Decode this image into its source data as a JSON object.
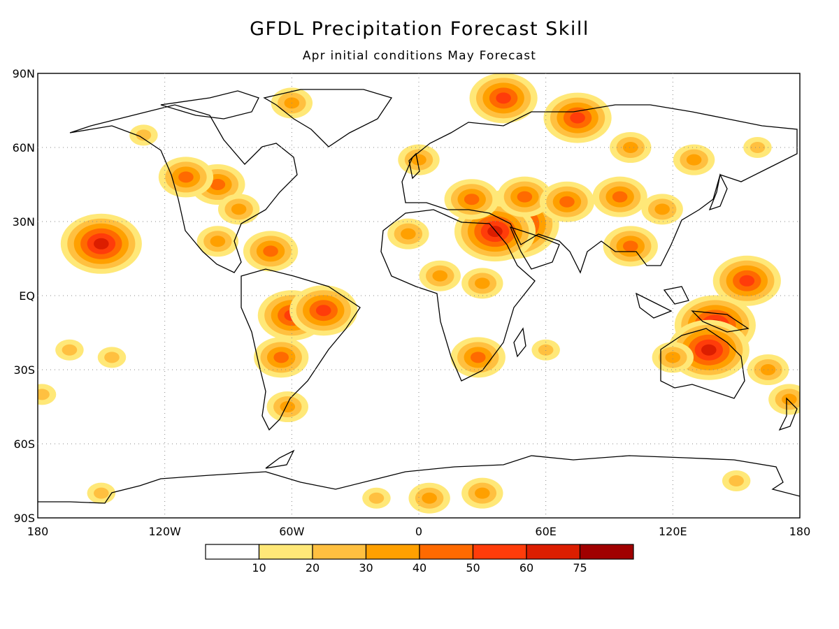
{
  "title": "GFDL Precipitation Forecast Skill",
  "subtitle": "Apr initial conditions  May Forecast",
  "axes": {
    "lat_ticks": [
      "90N",
      "60N",
      "30N",
      "EQ",
      "30S",
      "60S",
      "90S"
    ],
    "lat_values": [
      90,
      60,
      30,
      0,
      -30,
      -60,
      -90
    ],
    "lon_ticks": [
      "180",
      "120W",
      "60W",
      "0",
      "60E",
      "120E",
      "180"
    ],
    "lon_values": [
      -180,
      -120,
      -60,
      0,
      60,
      120,
      180
    ]
  },
  "colorbar": {
    "levels": [
      "10",
      "20",
      "30",
      "40",
      "50",
      "60",
      "75"
    ],
    "colors": [
      "#ffffff",
      "#ffe878",
      "#ffc040",
      "#ffa000",
      "#ff6a00",
      "#ff3c0a",
      "#dc1e00",
      "#a00000"
    ]
  },
  "blobs": [
    {
      "lon": 44,
      "lat": 29,
      "level": 7
    },
    {
      "lon": 36,
      "lat": 26,
      "level": 6
    },
    {
      "lon": 140,
      "lat": -12,
      "level": 6
    },
    {
      "lon": 137,
      "lat": -22,
      "level": 6
    },
    {
      "lon": 155,
      "lat": 6,
      "level": 5
    },
    {
      "lon": -150,
      "lat": 21,
      "level": 6
    },
    {
      "lon": 25,
      "lat": 39,
      "level": 4
    },
    {
      "lon": 50,
      "lat": 40,
      "level": 4
    },
    {
      "lon": 70,
      "lat": 38,
      "level": 4
    },
    {
      "lon": 95,
      "lat": 40,
      "level": 4
    },
    {
      "lon": 75,
      "lat": 72,
      "level": 5
    },
    {
      "lon": 40,
      "lat": 80,
      "level": 5
    },
    {
      "lon": -60,
      "lat": 78,
      "level": 3
    },
    {
      "lon": -95,
      "lat": 45,
      "level": 4
    },
    {
      "lon": -110,
      "lat": 48,
      "level": 4
    },
    {
      "lon": -85,
      "lat": 35,
      "level": 3
    },
    {
      "lon": -60,
      "lat": -8,
      "level": 5
    },
    {
      "lon": -45,
      "lat": -6,
      "level": 5
    },
    {
      "lon": -65,
      "lat": -25,
      "level": 4
    },
    {
      "lon": -62,
      "lat": -45,
      "level": 3
    },
    {
      "lon": -70,
      "lat": 18,
      "level": 4
    },
    {
      "lon": -95,
      "lat": 22,
      "level": 3
    },
    {
      "lon": 28,
      "lat": -25,
      "level": 4
    },
    {
      "lon": 10,
      "lat": 8,
      "level": 3
    },
    {
      "lon": 30,
      "lat": 5,
      "level": 3
    },
    {
      "lon": -5,
      "lat": 25,
      "level": 3
    },
    {
      "lon": 100,
      "lat": 20,
      "level": 4
    },
    {
      "lon": 115,
      "lat": 35,
      "level": 3
    },
    {
      "lon": 120,
      "lat": -25,
      "level": 3
    },
    {
      "lon": 165,
      "lat": -30,
      "level": 3
    },
    {
      "lon": 175,
      "lat": -42,
      "level": 3
    },
    {
      "lon": -165,
      "lat": -22,
      "level": 2
    },
    {
      "lon": -145,
      "lat": -25,
      "level": 2
    },
    {
      "lon": -178,
      "lat": -40,
      "level": 2
    },
    {
      "lon": 60,
      "lat": -22,
      "level": 2
    },
    {
      "lon": 100,
      "lat": 60,
      "level": 3
    },
    {
      "lon": 130,
      "lat": 55,
      "level": 3
    },
    {
      "lon": 160,
      "lat": 60,
      "level": 2
    },
    {
      "lon": 0,
      "lat": 55,
      "level": 3
    },
    {
      "lon": -130,
      "lat": 65,
      "level": 2
    },
    {
      "lon": 5,
      "lat": -82,
      "level": 3
    },
    {
      "lon": 30,
      "lat": -80,
      "level": 3
    },
    {
      "lon": -20,
      "lat": -82,
      "level": 2
    },
    {
      "lon": -150,
      "lat": -80,
      "level": 2
    },
    {
      "lon": 150,
      "lat": -75,
      "level": 2
    }
  ]
}
